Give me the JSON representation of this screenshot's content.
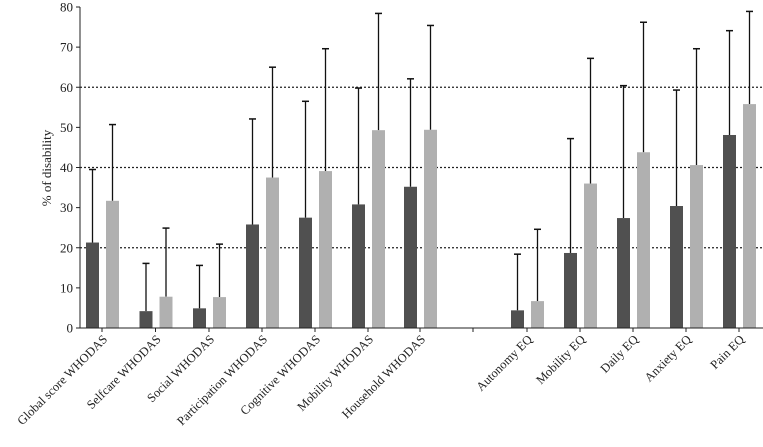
{
  "chart_data": {
    "type": "bar",
    "title": "",
    "xlabel": "",
    "ylabel": "% of disability",
    "ylim": [
      0,
      80
    ],
    "yticks": [
      "0",
      "10",
      "20",
      "30",
      "40",
      "50",
      "60",
      "70",
      "80"
    ],
    "grid": "dotted horizontal lines at 20, 40, 60",
    "legend": "none",
    "categories": [
      "Global score WHODAS",
      "Selfcare WHODAS",
      "Social WHODAS",
      "Participation WHODAS",
      "Cognitive WHODAS",
      "Mobility WHODAS",
      "Household WHODAS",
      "",
      "Autonomy EQ",
      "Mobility EQ",
      "Daily EQ",
      "Anxiety EQ",
      "Pain EQ"
    ],
    "series": [
      {
        "color": "#505050",
        "values": [
          21.3,
          4.2,
          4.9,
          25.8,
          27.5,
          30.8,
          35.2,
          null,
          4.4,
          18.7,
          27.4,
          30.4,
          48.1
        ],
        "error_bar_top": [
          39.5,
          16.1,
          15.6,
          52.1,
          56.5,
          59.8,
          62.1,
          null,
          18.4,
          47.2,
          60.4,
          59.3,
          74.1
        ]
      },
      {
        "color": "#b0b0b0",
        "values": [
          31.7,
          7.8,
          7.7,
          37.5,
          39.1,
          49.3,
          49.4,
          null,
          6.7,
          36.0,
          43.8,
          40.6,
          55.8
        ],
        "error_bar_top": [
          50.7,
          24.9,
          20.9,
          65.0,
          69.6,
          78.4,
          75.4,
          null,
          24.6,
          67.2,
          76.2,
          69.6,
          78.9
        ]
      }
    ]
  }
}
